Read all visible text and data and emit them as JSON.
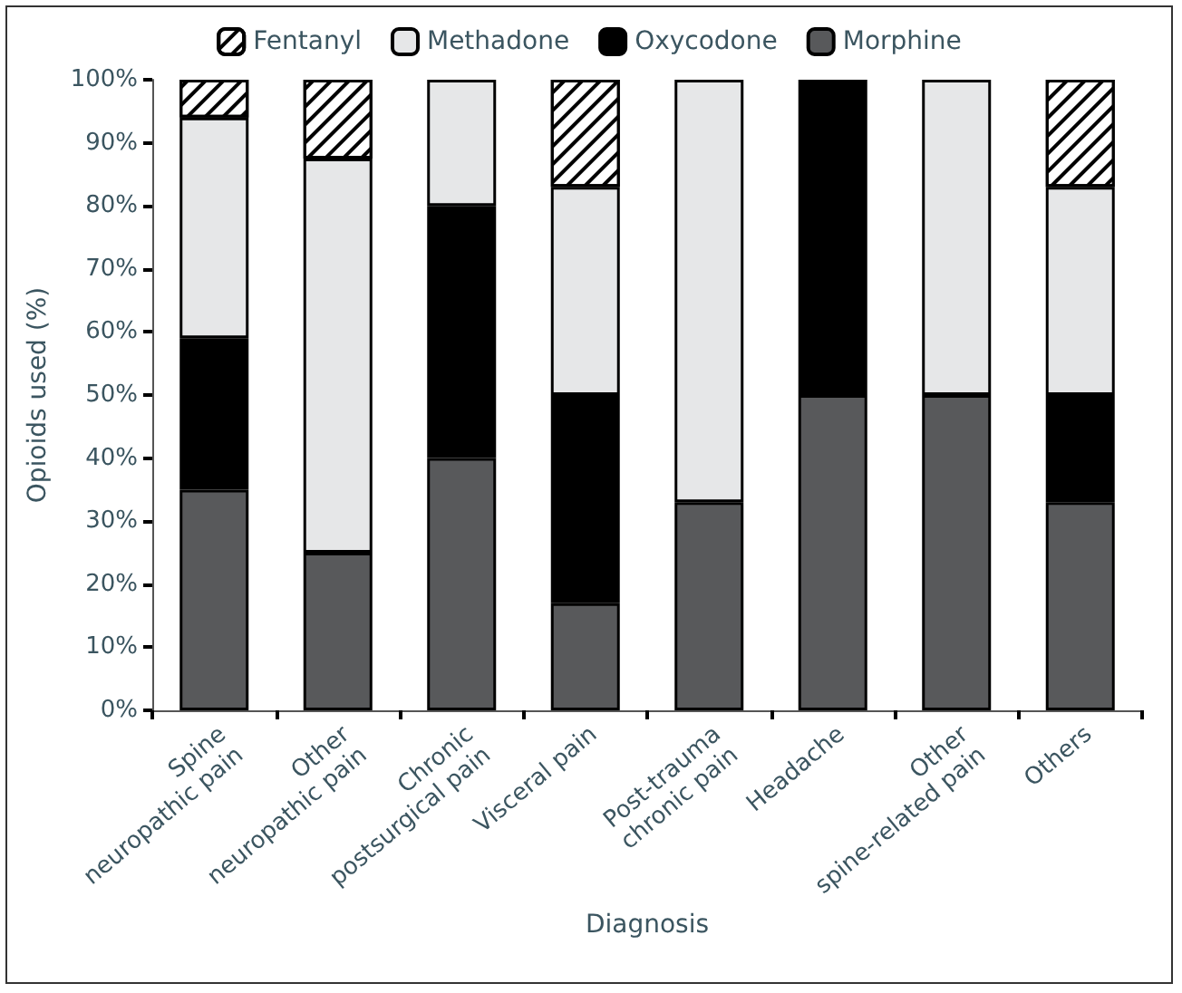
{
  "chart_data": {
    "type": "bar",
    "stacked": true,
    "xlabel": "Diagnosis",
    "ylabel": "Opioids used (%)",
    "categories": [
      "Spine\nneuropathic pain",
      "Other\nneuropathic pain",
      "Chronic\npostsurgical pain",
      "Visceral pain",
      "Post-trauma\nchronic pain",
      "Headache",
      "Other\nspine-related pain",
      "Others"
    ],
    "series": [
      {
        "name": "Morphine",
        "color": "#58595b",
        "values": [
          35,
          25,
          40,
          17,
          33,
          50,
          50,
          33
        ]
      },
      {
        "name": "Oxycodone",
        "color": "#000000",
        "values": [
          24,
          0,
          40,
          33,
          0,
          50,
          0,
          17
        ]
      },
      {
        "name": "Methadone",
        "color": "#e6e7e8",
        "values": [
          35,
          62.5,
          20,
          33,
          67,
          0,
          50,
          33
        ]
      },
      {
        "name": "Fentanyl",
        "color": "#ffffff",
        "values": [
          6,
          12.5,
          0,
          17,
          0,
          0,
          0,
          17
        ]
      }
    ],
    "ylim": [
      0,
      100
    ],
    "yticks": [
      {
        "value": 0,
        "label": "0%"
      },
      {
        "value": 10,
        "label": "10%"
      },
      {
        "value": 20,
        "label": "20%"
      },
      {
        "value": 30,
        "label": "30%"
      },
      {
        "value": 40,
        "label": "40%"
      },
      {
        "value": 50,
        "label": "50%"
      },
      {
        "value": 60,
        "label": "60%"
      },
      {
        "value": 70,
        "label": "70%"
      },
      {
        "value": 80,
        "label": "80%"
      },
      {
        "value": 90,
        "label": "90%"
      },
      {
        "value": 100,
        "label": "100%"
      }
    ],
    "grid": false,
    "legend": "top"
  }
}
